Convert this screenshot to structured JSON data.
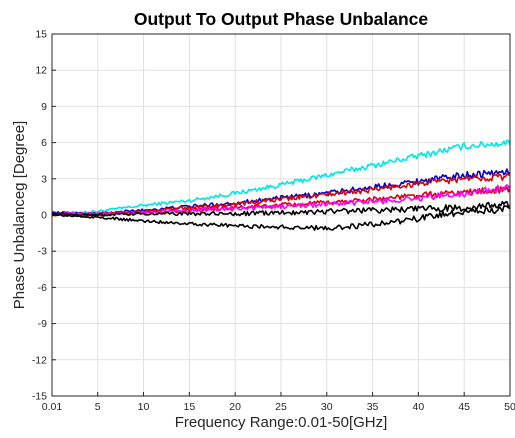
{
  "chart_data": {
    "type": "line",
    "title": "Output To Output Phase Unbalance",
    "xlabel": "Frequency Range:0.01-50[GHz]",
    "ylabel": "Phase Unbalanceg [Degree]",
    "xlim": [
      0.01,
      50
    ],
    "ylim": [
      -15,
      15
    ],
    "x_ticks": [
      0.01,
      5,
      10,
      15,
      20,
      25,
      30,
      35,
      40,
      45,
      50
    ],
    "x_tick_labels": [
      "0.01",
      "5",
      "10",
      "15",
      "20",
      "25",
      "30",
      "35",
      "40",
      "45",
      "50"
    ],
    "y_ticks": [
      -15,
      -12,
      -9,
      -6,
      -3,
      0,
      3,
      6,
      9,
      12,
      15
    ],
    "y_tick_labels": [
      "-15",
      "-12",
      "-9",
      "-6",
      "-3",
      "0",
      "3",
      "6",
      "9",
      "12",
      "15"
    ],
    "grid": true,
    "x": [
      0.01,
      5,
      10,
      15,
      20,
      25,
      30,
      35,
      40,
      45,
      50
    ],
    "series": [
      {
        "color": "#00e5e5",
        "values": [
          0.1,
          0.3,
          0.8,
          1.2,
          1.8,
          2.5,
          3.3,
          4.1,
          4.9,
          5.7,
          6.0
        ]
      },
      {
        "color": "#0000cc",
        "values": [
          0.2,
          0.1,
          0.4,
          0.7,
          1.0,
          1.4,
          1.8,
          2.3,
          2.8,
          3.3,
          3.6
        ]
      },
      {
        "color": "#dd0000",
        "values": [
          0.1,
          0.1,
          0.3,
          0.6,
          0.9,
          1.3,
          1.7,
          2.1,
          2.6,
          3.0,
          3.2
        ]
      },
      {
        "color": "#dd0000",
        "values": [
          0.0,
          0.0,
          0.2,
          0.4,
          0.6,
          0.8,
          1.0,
          1.3,
          1.6,
          1.9,
          2.1
        ]
      },
      {
        "color": "#ff00ff",
        "values": [
          0.1,
          0.1,
          0.2,
          0.4,
          0.5,
          0.7,
          0.9,
          1.1,
          1.4,
          1.8,
          2.3
        ]
      },
      {
        "color": "#000000",
        "values": [
          0.1,
          0.0,
          0.1,
          0.1,
          0.1,
          0.2,
          0.3,
          0.4,
          0.5,
          0.6,
          0.9
        ]
      },
      {
        "color": "#000000",
        "values": [
          0.0,
          -0.2,
          -0.5,
          -0.7,
          -0.9,
          -1.0,
          -1.1,
          -0.8,
          -0.3,
          0.3,
          0.5
        ]
      }
    ]
  }
}
